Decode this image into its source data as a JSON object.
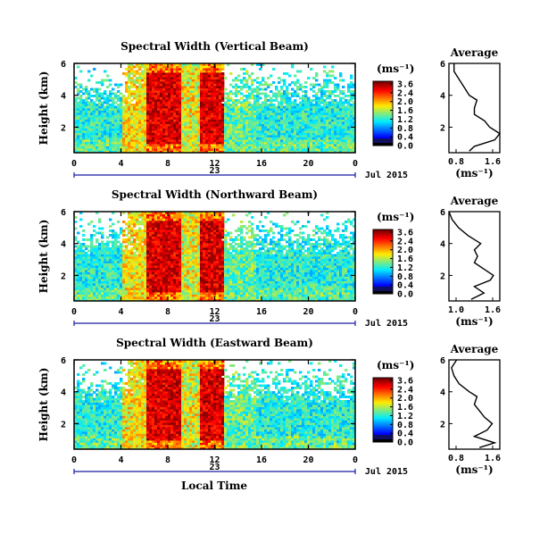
{
  "colorbar_ticks": [
    "3.6",
    "2.4",
    "2.0",
    "1.6",
    "1.2",
    "0.8",
    "0.4",
    "0.0"
  ],
  "height_ticks": [
    "6",
    "4",
    "2"
  ],
  "time_ticks": [
    "0",
    "4",
    "8",
    "12",
    "16",
    "20",
    "0"
  ],
  "date_day": "23",
  "date_month_year": "Jul 2015",
  "x_label": "Local Time",
  "y_label": "Height (km)",
  "unit_label": "(ms⁻¹)",
  "average_title": "Average",
  "colors": {
    "high": "#e02020",
    "mid": "#40d0c0",
    "low": "#2020c0",
    "axis": "#000000",
    "date_line": "#1a1aa0"
  },
  "chart_data": [
    {
      "type": "heatmap",
      "title": "Spectral Width (Vertical Beam)",
      "xlabel": "",
      "ylabel": "Height (km)",
      "xlim": [
        0,
        24
      ],
      "ylim": [
        0.4,
        6.0
      ],
      "colorbar": {
        "label": "(ms⁻¹)",
        "range": [
          0.0,
          3.6
        ]
      },
      "profile": {
        "title": "Average",
        "xlabel": "(ms⁻¹)",
        "xticks": [
          "0.8",
          "1.6"
        ],
        "xlim": [
          0.8,
          1.8
        ],
        "x": [
          1.2,
          1.3,
          1.7,
          1.8,
          1.6,
          1.5,
          1.3,
          1.3,
          1.35,
          1.2,
          1.1,
          1.0,
          0.9,
          0.9
        ],
        "y": [
          0.5,
          0.8,
          1.2,
          1.6,
          2.0,
          2.4,
          2.8,
          3.2,
          3.7,
          4.0,
          4.5,
          5.0,
          5.5,
          6.0
        ]
      }
    },
    {
      "type": "heatmap",
      "title": "Spectral Width (Northward Beam)",
      "xlabel": "",
      "ylabel": "Height (km)",
      "xlim": [
        0,
        24
      ],
      "ylim": [
        0.4,
        6.0
      ],
      "colorbar": {
        "label": "(ms⁻¹)",
        "range": [
          0.0,
          2.8
        ]
      },
      "profile": {
        "title": "Average",
        "xlabel": "(ms⁻¹)",
        "xticks": [
          "1.0",
          "1.6"
        ],
        "xlim": [
          0.9,
          1.7
        ],
        "x": [
          1.25,
          1.45,
          1.3,
          1.55,
          1.6,
          1.45,
          1.3,
          1.35,
          1.3,
          1.4,
          1.2,
          1.05,
          0.95,
          0.9
        ],
        "y": [
          0.5,
          0.9,
          1.3,
          1.7,
          2.0,
          2.4,
          2.8,
          3.2,
          3.6,
          4.0,
          4.5,
          5.0,
          5.5,
          6.0
        ]
      }
    },
    {
      "type": "heatmap",
      "title": "Spectral Width (Eastward Beam)",
      "xlabel": "Local Time",
      "ylabel": "Height (km)",
      "xlim": [
        0,
        24
      ],
      "ylim": [
        0.4,
        6.0
      ],
      "colorbar": {
        "label": "(ms⁻¹)",
        "range": [
          0.0,
          2.8
        ]
      },
      "profile": {
        "title": "Average",
        "xlabel": "(ms⁻¹)",
        "xticks": [
          "0.8",
          "1.6"
        ],
        "xlim": [
          0.8,
          1.8
        ],
        "x": [
          1.4,
          1.7,
          1.3,
          1.55,
          1.65,
          1.5,
          1.4,
          1.3,
          1.35,
          1.2,
          1.0,
          0.9,
          0.85,
          0.95
        ],
        "y": [
          0.5,
          0.8,
          1.2,
          1.6,
          2.0,
          2.4,
          2.8,
          3.2,
          3.7,
          4.0,
          4.5,
          5.0,
          5.5,
          6.0
        ]
      }
    }
  ]
}
